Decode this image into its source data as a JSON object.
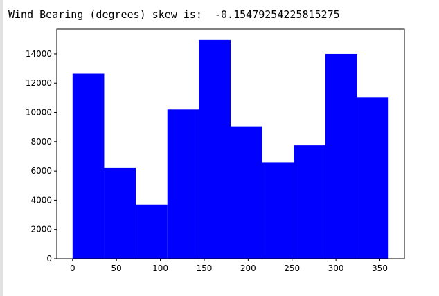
{
  "output": {
    "prefix": "Wind Bearing (degrees) skew is:",
    "value": "-0.15479254225815275"
  },
  "chart_data": {
    "type": "bar",
    "title": "",
    "xlabel": "",
    "ylabel": "",
    "bins": [
      {
        "x0": 0,
        "x1": 36,
        "value": 12650
      },
      {
        "x0": 36,
        "x1": 72,
        "value": 6200
      },
      {
        "x0": 72,
        "x1": 108,
        "value": 3700
      },
      {
        "x0": 108,
        "x1": 144,
        "value": 10200
      },
      {
        "x0": 144,
        "x1": 180,
        "value": 14950
      },
      {
        "x0": 180,
        "x1": 216,
        "value": 9050
      },
      {
        "x0": 216,
        "x1": 252,
        "value": 6600
      },
      {
        "x0": 252,
        "x1": 288,
        "value": 7750
      },
      {
        "x0": 288,
        "x1": 324,
        "value": 14000
      },
      {
        "x0": 324,
        "x1": 360,
        "value": 11050
      }
    ],
    "xlim": [
      -18,
      378
    ],
    "ylim": [
      0,
      15700
    ],
    "xticks": [
      "0",
      "50",
      "100",
      "150",
      "200",
      "250",
      "300",
      "350"
    ],
    "yticks": [
      "0",
      "2000",
      "4000",
      "6000",
      "8000",
      "10000",
      "12000",
      "14000"
    ],
    "bar_color": "#0000ff",
    "grid": false
  }
}
